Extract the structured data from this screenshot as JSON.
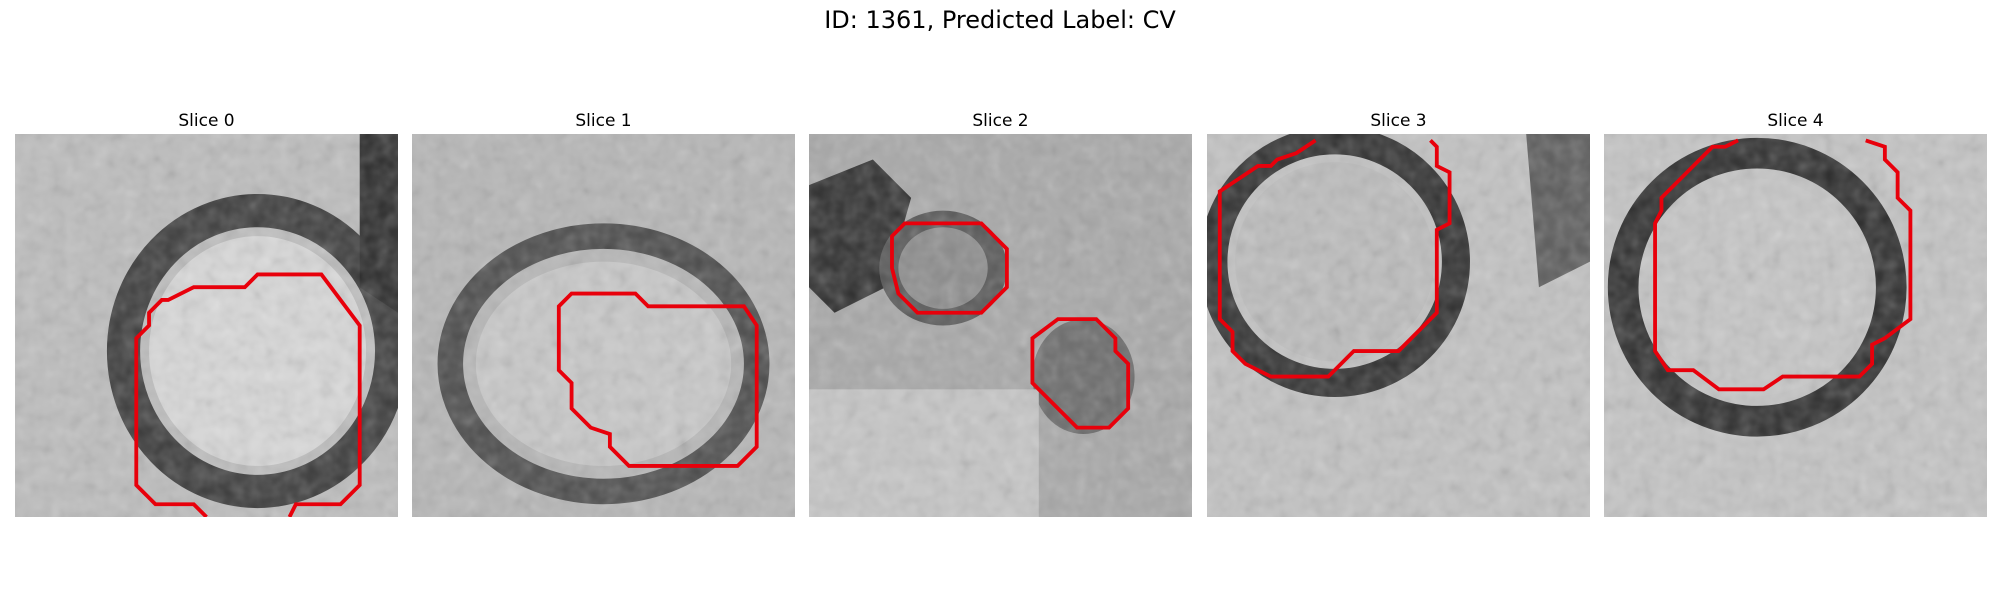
{
  "figure": {
    "title": "ID: 1361, Predicted Label: CV"
  },
  "panels": [
    {
      "label": "Slice 0"
    },
    {
      "label": "Slice 1"
    },
    {
      "label": "Slice 2"
    },
    {
      "label": "Slice 3"
    },
    {
      "label": "Slice 4"
    }
  ],
  "colors": {
    "contour": "#e8000b",
    "background": "#ffffff"
  }
}
